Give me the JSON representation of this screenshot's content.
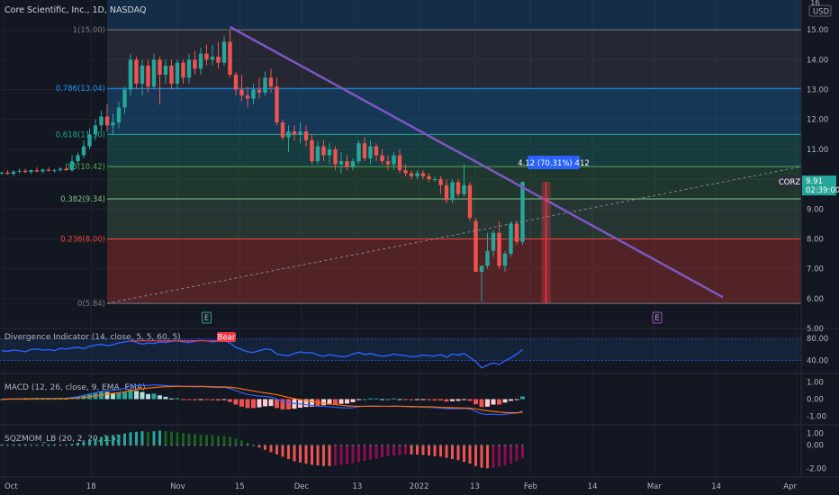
{
  "header": {
    "symbol": "Core Scientific, Inc., 1D, NASDAQ",
    "currency_top": "16",
    "currency": "USD"
  },
  "colors": {
    "background": "#131722",
    "up": "#26a69a",
    "down": "#ef5350",
    "trendline": "#7e57c2",
    "divergence": "#2962ff",
    "bear": "#f23645",
    "macd": "#2962ff",
    "signal": "#ff6d00",
    "price_tag": "#2962ff"
  },
  "chart_data": [
    {
      "type": "candlestick",
      "name": "main",
      "ylim": [
        5,
        16
      ],
      "y_ticks": [
        "5.00",
        "6.00",
        "7.00",
        "8.00",
        "9.00",
        "10.00",
        "11.00",
        "12.00",
        "13.00",
        "14.00",
        "15.00"
      ],
      "x_labels": [
        {
          "label": "Oct",
          "x": 0
        },
        {
          "label": "18",
          "x": 14
        },
        {
          "label": "Nov",
          "x": 28
        },
        {
          "label": "15",
          "x": 38
        },
        {
          "label": "Dec",
          "x": 48
        },
        {
          "label": "13",
          "x": 57
        },
        {
          "label": "2022",
          "x": 67
        },
        {
          "label": "13",
          "x": 76
        },
        {
          "label": "Feb",
          "x": 85
        },
        {
          "label": "14",
          "x": 95
        },
        {
          "label": "Mar",
          "x": 105
        },
        {
          "label": "14",
          "x": 115
        },
        {
          "label": "Apr",
          "x": 128
        }
      ],
      "xlim": [
        0,
        128
      ],
      "fib_levels": [
        {
          "label": "1(15.00)",
          "value": 15.0,
          "color": "#787b86"
        },
        {
          "label": "0.786(13.04)",
          "value": 13.04,
          "color": "#2196f3"
        },
        {
          "label": "0.618(11.50)",
          "value": 11.5,
          "color": "#26a69a"
        },
        {
          "label": "0.5(10.42)",
          "value": 10.42,
          "color": "#4caf50"
        },
        {
          "label": "0.382(9.34)",
          "value": 9.34,
          "color": "#81c784"
        },
        {
          "label": "0.236(8.00)",
          "value": 8.0,
          "color": "#f44336"
        },
        {
          "label": "0(5.84)",
          "value": 5.84,
          "color": "#787b86"
        }
      ],
      "candles": [
        [
          0,
          10.2,
          10.25,
          10.15,
          10.22
        ],
        [
          1,
          10.22,
          10.3,
          10.15,
          10.18
        ],
        [
          2,
          10.18,
          10.3,
          10.1,
          10.25
        ],
        [
          3,
          10.25,
          10.35,
          10.2,
          10.28
        ],
        [
          4,
          10.28,
          10.35,
          10.2,
          10.24
        ],
        [
          5,
          10.24,
          10.32,
          10.18,
          10.3
        ],
        [
          6,
          10.3,
          10.4,
          10.22,
          10.26
        ],
        [
          7,
          10.26,
          10.35,
          10.2,
          10.32
        ],
        [
          8,
          10.32,
          10.4,
          10.25,
          10.28
        ],
        [
          9,
          10.28,
          10.35,
          10.22,
          10.3
        ],
        [
          10,
          10.3,
          10.4,
          10.25,
          10.35
        ],
        [
          11,
          10.35,
          10.42,
          10.28,
          10.3
        ],
        [
          12,
          10.3,
          10.8,
          10.25,
          10.6
        ],
        [
          13,
          10.6,
          10.9,
          10.5,
          10.8
        ],
        [
          14,
          10.8,
          11.3,
          10.7,
          11.1
        ],
        [
          15,
          11.1,
          11.7,
          11.0,
          11.5
        ],
        [
          16,
          11.5,
          12.0,
          11.3,
          11.8
        ],
        [
          17,
          11.8,
          12.3,
          11.6,
          12.1
        ],
        [
          18,
          12.1,
          12.5,
          11.6,
          11.8
        ],
        [
          19,
          11.8,
          12.2,
          11.5,
          11.9
        ],
        [
          20,
          11.9,
          12.6,
          11.7,
          12.4
        ],
        [
          21,
          12.4,
          13.1,
          12.2,
          13.0
        ],
        [
          22,
          13.0,
          14.2,
          12.8,
          14.0
        ],
        [
          23,
          14.0,
          14.1,
          13.0,
          13.2
        ],
        [
          24,
          13.2,
          14.0,
          12.8,
          13.8
        ],
        [
          25,
          13.8,
          14.0,
          12.9,
          13.1
        ],
        [
          26,
          13.1,
          14.2,
          13.0,
          14.0
        ],
        [
          27,
          14.0,
          14.1,
          12.5,
          13.5
        ],
        [
          28,
          13.5,
          14.0,
          13.2,
          13.8
        ],
        [
          29,
          13.8,
          14.0,
          13.0,
          13.2
        ],
        [
          30,
          13.2,
          14.0,
          13.0,
          13.9
        ],
        [
          31,
          13.9,
          14.0,
          13.2,
          13.4
        ],
        [
          32,
          13.4,
          14.2,
          13.2,
          14.0
        ],
        [
          33,
          14.0,
          14.3,
          13.5,
          13.7
        ],
        [
          34,
          13.7,
          14.4,
          13.5,
          14.2
        ],
        [
          35,
          14.2,
          14.5,
          13.8,
          14.0
        ],
        [
          36,
          14.0,
          14.5,
          13.8,
          14.1
        ],
        [
          37,
          14.1,
          14.6,
          13.7,
          13.9
        ],
        [
          38,
          13.9,
          14.8,
          13.8,
          14.6
        ],
        [
          39,
          14.6,
          15.0,
          13.4,
          13.5
        ],
        [
          40,
          13.5,
          13.6,
          12.8,
          13.0
        ],
        [
          41,
          13.0,
          13.5,
          12.6,
          12.8
        ],
        [
          42,
          12.8,
          13.1,
          12.4,
          12.7
        ],
        [
          43,
          12.7,
          13.2,
          12.5,
          13.0
        ],
        [
          44,
          13.0,
          13.4,
          12.7,
          12.9
        ],
        [
          45,
          12.9,
          13.6,
          12.8,
          13.4
        ],
        [
          46,
          13.4,
          13.7,
          12.9,
          13.1
        ],
        [
          47,
          13.1,
          13.4,
          11.8,
          11.9
        ],
        [
          48,
          11.9,
          12.0,
          11.3,
          11.4
        ],
        [
          49,
          11.4,
          11.8,
          10.9,
          11.6
        ],
        [
          50,
          11.6,
          11.8,
          11.3,
          11.5
        ],
        [
          51,
          11.5,
          11.9,
          11.2,
          11.6
        ],
        [
          52,
          11.6,
          11.8,
          11.1,
          11.3
        ],
        [
          53,
          11.3,
          11.5,
          10.5,
          10.6
        ],
        [
          54,
          10.6,
          11.3,
          10.5,
          11.1
        ],
        [
          55,
          11.1,
          11.3,
          10.6,
          10.8
        ],
        [
          56,
          10.8,
          11.2,
          10.5,
          11.0
        ],
        [
          57,
          11.0,
          11.1,
          10.3,
          10.5
        ],
        [
          58,
          10.5,
          10.9,
          10.2,
          10.6
        ],
        [
          59,
          10.6,
          10.8,
          10.3,
          10.4
        ],
        [
          60,
          10.4,
          10.7,
          10.3,
          10.6
        ],
        [
          61,
          10.6,
          11.3,
          10.5,
          11.2
        ],
        [
          62,
          11.2,
          11.4,
          10.6,
          10.7
        ],
        [
          63,
          10.7,
          11.3,
          10.5,
          11.1
        ],
        [
          64,
          11.1,
          11.2,
          10.6,
          10.8
        ],
        [
          65,
          10.8,
          11.0,
          10.5,
          10.6
        ],
        [
          66,
          10.6,
          10.8,
          10.3,
          10.5
        ],
        [
          67,
          10.5,
          10.9,
          10.3,
          10.8
        ],
        [
          68,
          10.8,
          11.0,
          10.2,
          10.3
        ],
        [
          69,
          10.3,
          10.5,
          10.1,
          10.2
        ],
        [
          70,
          10.2,
          10.3,
          10.0,
          10.1
        ],
        [
          71,
          10.1,
          10.3,
          10.0,
          10.2
        ],
        [
          72,
          10.2,
          10.3,
          10.0,
          10.1
        ],
        [
          73,
          10.1,
          10.2,
          9.9,
          10.0
        ],
        [
          74,
          10.0,
          10.1,
          9.9,
          10.0
        ],
        [
          75,
          10.0,
          10.1,
          9.5,
          9.8
        ],
        [
          76,
          9.8,
          10.0,
          9.2,
          9.3
        ],
        [
          77,
          9.3,
          10.0,
          9.2,
          9.9
        ],
        [
          78,
          9.9,
          10.0,
          9.4,
          9.5
        ],
        [
          79,
          9.5,
          10.5,
          9.4,
          9.8
        ],
        [
          80,
          9.8,
          9.9,
          8.6,
          8.7
        ],
        [
          81,
          8.6,
          8.7,
          6.9,
          6.9
        ],
        [
          82,
          6.9,
          7.1,
          5.9,
          7.1
        ],
        [
          83,
          7.1,
          8.2,
          7.0,
          7.6
        ],
        [
          84,
          7.6,
          8.3,
          7.4,
          8.2
        ],
        [
          85,
          8.2,
          8.6,
          7.0,
          7.1
        ],
        [
          86,
          7.1,
          7.6,
          6.9,
          7.5
        ],
        [
          87,
          7.5,
          8.6,
          7.4,
          8.5
        ],
        [
          88,
          8.5,
          8.6,
          7.8,
          7.9
        ],
        [
          89,
          7.9,
          9.9,
          7.8,
          9.91
        ]
      ],
      "measure_label": "4.12 (70.31%) 412",
      "last_price": {
        "symbol": "CORZ",
        "price": "9.91",
        "countdown": "02:39:00"
      },
      "earnings_markers": [
        "E",
        "E"
      ]
    },
    {
      "type": "line",
      "name": "Divergence Indicator (14, close, 5, 5, 60, 5)",
      "ylim": [
        20,
        95
      ],
      "y_ticks": [
        "80.00",
        "40.00"
      ],
      "bear_label": "Bear",
      "values": [
        58,
        57,
        59,
        58,
        56,
        60,
        61,
        59,
        60,
        58,
        62,
        61,
        63,
        64,
        62,
        66,
        68,
        70,
        67,
        69,
        72,
        74,
        76,
        73,
        70,
        72,
        71,
        74,
        73,
        75,
        76,
        74,
        73,
        75,
        77,
        76,
        74,
        75,
        76,
        72,
        64,
        60,
        56,
        55,
        58,
        61,
        60,
        52,
        50,
        49,
        53,
        56,
        54,
        55,
        50,
        48,
        51,
        49,
        47,
        48,
        52,
        55,
        51,
        53,
        50,
        48,
        49,
        52,
        50,
        49,
        47,
        48,
        50,
        49,
        48,
        51,
        46,
        52,
        50,
        53,
        46,
        38,
        27,
        32,
        36,
        33,
        40,
        45,
        52,
        60
      ]
    },
    {
      "type": "line",
      "name": "MACD (12, 26, close, 9, EMA, EMA)",
      "ylim": [
        -1.4,
        1.4
      ],
      "y_ticks": [
        "1.00",
        "0.00",
        "-1.00"
      ],
      "macd": [
        0.0,
        0.01,
        0.02,
        0.02,
        0.03,
        0.03,
        0.04,
        0.04,
        0.04,
        0.04,
        0.05,
        0.05,
        0.1,
        0.15,
        0.22,
        0.3,
        0.38,
        0.46,
        0.5,
        0.52,
        0.56,
        0.64,
        0.78,
        0.8,
        0.82,
        0.8,
        0.84,
        0.82,
        0.8,
        0.76,
        0.78,
        0.74,
        0.74,
        0.72,
        0.74,
        0.72,
        0.7,
        0.68,
        0.7,
        0.62,
        0.5,
        0.38,
        0.28,
        0.22,
        0.18,
        0.16,
        0.12,
        0.0,
        -0.12,
        -0.2,
        -0.25,
        -0.28,
        -0.32,
        -0.36,
        -0.42,
        -0.42,
        -0.44,
        -0.48,
        -0.5,
        -0.52,
        -0.5,
        -0.44,
        -0.42,
        -0.4,
        -0.4,
        -0.42,
        -0.42,
        -0.4,
        -0.42,
        -0.44,
        -0.46,
        -0.46,
        -0.47,
        -0.48,
        -0.5,
        -0.52,
        -0.56,
        -0.56,
        -0.56,
        -0.54,
        -0.58,
        -0.72,
        -0.86,
        -0.9,
        -0.88,
        -0.92,
        -0.88,
        -0.84,
        -0.82,
        -0.7
      ],
      "signal": [
        0.0,
        0.0,
        0.01,
        0.01,
        0.02,
        0.02,
        0.03,
        0.03,
        0.03,
        0.03,
        0.04,
        0.04,
        0.05,
        0.07,
        0.1,
        0.14,
        0.19,
        0.24,
        0.29,
        0.34,
        0.38,
        0.43,
        0.5,
        0.56,
        0.61,
        0.65,
        0.68,
        0.71,
        0.73,
        0.74,
        0.75,
        0.75,
        0.75,
        0.75,
        0.75,
        0.74,
        0.73,
        0.72,
        0.72,
        0.7,
        0.66,
        0.6,
        0.54,
        0.48,
        0.42,
        0.37,
        0.32,
        0.26,
        0.18,
        0.1,
        0.03,
        -0.03,
        -0.09,
        -0.14,
        -0.2,
        -0.24,
        -0.28,
        -0.32,
        -0.36,
        -0.39,
        -0.41,
        -0.42,
        -0.42,
        -0.42,
        -0.42,
        -0.42,
        -0.42,
        -0.42,
        -0.42,
        -0.42,
        -0.43,
        -0.44,
        -0.45,
        -0.45,
        -0.46,
        -0.48,
        -0.49,
        -0.5,
        -0.51,
        -0.52,
        -0.53,
        -0.57,
        -0.63,
        -0.68,
        -0.72,
        -0.76,
        -0.78,
        -0.79,
        -0.8,
        -0.78
      ]
    },
    {
      "type": "bar",
      "name": "SQZMOM_LB (20, 2, 20, 1.5)",
      "ylim": [
        -2.6,
        1.6
      ],
      "y_ticks": [
        "1.00",
        "0.00",
        "-2.00"
      ],
      "values": [
        0.05,
        0.04,
        0.05,
        0.06,
        0.07,
        0.06,
        0.05,
        0.04,
        0.05,
        0.06,
        0.05,
        0.04,
        0.1,
        0.2,
        0.3,
        0.42,
        0.55,
        0.7,
        0.8,
        0.85,
        0.9,
        1.0,
        1.1,
        1.15,
        1.2,
        1.15,
        1.2,
        1.25,
        1.2,
        1.15,
        1.1,
        1.05,
        1.0,
        0.95,
        0.9,
        0.88,
        0.85,
        0.8,
        0.78,
        0.7,
        0.55,
        0.4,
        0.2,
        0.0,
        -0.2,
        -0.4,
        -0.6,
        -0.8,
        -1.0,
        -1.2,
        -1.4,
        -1.5,
        -1.6,
        -1.7,
        -1.75,
        -1.8,
        -1.8,
        -1.75,
        -1.7,
        -1.65,
        -1.55,
        -1.45,
        -1.35,
        -1.25,
        -1.15,
        -1.05,
        -0.95,
        -0.9,
        -0.85,
        -0.8,
        -0.8,
        -0.82,
        -0.85,
        -0.9,
        -0.95,
        -1.0,
        -1.1,
        -1.2,
        -1.3,
        -1.45,
        -1.6,
        -1.8,
        -1.95,
        -2.0,
        -1.95,
        -1.85,
        -1.75,
        -1.6,
        -1.4,
        -1.1
      ]
    }
  ]
}
